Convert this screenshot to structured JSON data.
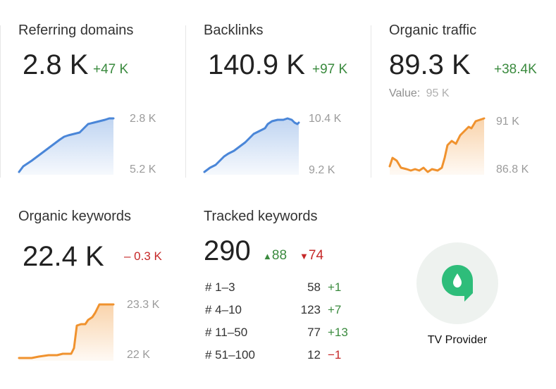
{
  "cards": {
    "referring_domains": {
      "title": "Referring domains",
      "value": "2.8 K",
      "delta": "+47 K",
      "axis_top": "2.8 K",
      "axis_bottom": "5.2 K"
    },
    "backlinks": {
      "title": "Backlinks",
      "value": "140.9 K",
      "delta": "+97 K",
      "axis_top": "10.4 K",
      "axis_bottom": "9.2 K"
    },
    "organic_traffic": {
      "title": "Organic traffic",
      "value": "89.3 K",
      "delta": "+38.4K",
      "value_label": "Value:",
      "value_amount": "95 K",
      "axis_top": "91 K",
      "axis_bottom": "86.8 K"
    },
    "organic_keywords": {
      "title": "Organic keywords",
      "value": "22.4 K",
      "delta": "– 0.3 K",
      "axis_top": "23.3 K",
      "axis_bottom": "22 K"
    },
    "tracked_keywords": {
      "title": "Tracked keywords",
      "value": "290",
      "up": "88",
      "down": "74",
      "rows": [
        {
          "range": "# 1–3",
          "count": "58",
          "change": "+1",
          "dir": "pos"
        },
        {
          "range": "# 4–10",
          "count": "123",
          "change": "+7",
          "dir": "pos"
        },
        {
          "range": "# 11–50",
          "count": "77",
          "change": "+13",
          "dir": "pos"
        },
        {
          "range": "# 51–100",
          "count": "12",
          "change": "−1",
          "dir": "neg"
        }
      ]
    }
  },
  "logo": {
    "label": "TV Provider",
    "icon": "location-pin-icon",
    "color": "#2ebd7a"
  },
  "colors": {
    "blue": "#4a86d8",
    "orange": "#f0922e",
    "green": "#3a8a3e",
    "red": "#c62828"
  }
}
